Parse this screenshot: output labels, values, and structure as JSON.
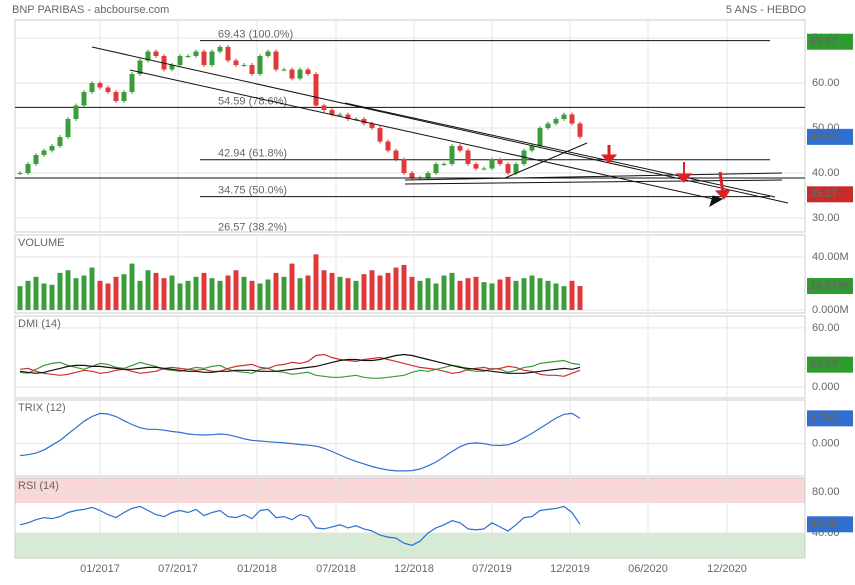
{
  "chart_data": [
    {
      "type": "candlestick",
      "title": "BNP PARIBAS - abcbourse.com",
      "subtitle": "5 ANS - HEBDO",
      "values": [
        40,
        42,
        44,
        45,
        46,
        48,
        52,
        55,
        58,
        60,
        59,
        58,
        56,
        58,
        62,
        65,
        67,
        66,
        63,
        64,
        66,
        66,
        67,
        64,
        67,
        68,
        65,
        64,
        64,
        62,
        66,
        67,
        63,
        63,
        61,
        63,
        62,
        55,
        54,
        53,
        53,
        52,
        52,
        51,
        50,
        47,
        45,
        43,
        40,
        39,
        39,
        40,
        42,
        42,
        46,
        45,
        42,
        41,
        41,
        43,
        42,
        40,
        42,
        45,
        46,
        50,
        51,
        52,
        53,
        51,
        48.04
      ],
      "up_color": "#3a9c3a",
      "down_color": "#e0393b",
      "ylim": [
        26.9,
        74
      ],
      "yticks": [
        {
          "value": 70,
          "label": "70.00"
        },
        {
          "value": 60,
          "label": "60.00"
        },
        {
          "value": 50,
          "label": "50.00"
        },
        {
          "value": 40,
          "label": "40.00"
        },
        {
          "value": 30,
          "label": "30.00"
        }
      ],
      "levels": [
        {
          "value": 69.43,
          "label": "69.43  (100.0%)"
        },
        {
          "value": 54.59,
          "label": "54.59  (78.6%)"
        },
        {
          "value": 42.94,
          "label": "42.94  (61.8%)"
        },
        {
          "value": 34.75,
          "label": "34.75  (50.0%)"
        },
        {
          "value": 26.57,
          "label": "26.57  (38.2%)"
        }
      ],
      "badges": [
        {
          "value": 69.17,
          "color": "#2e9b2e"
        },
        {
          "value": 48.04,
          "color": "#2f6fd0"
        },
        {
          "value": 35.27,
          "color": "#c92b2b"
        }
      ]
    },
    {
      "type": "bar",
      "title": "VOLUME",
      "title_color": "#2e9b2e",
      "values": [
        18,
        22,
        25,
        20,
        19,
        28,
        30,
        24,
        26,
        32,
        22,
        20,
        25,
        27,
        35,
        22,
        30,
        28,
        24,
        26,
        20,
        22,
        25,
        28,
        24,
        22,
        26,
        30,
        25,
        22,
        20,
        23,
        28,
        25,
        35,
        24,
        26,
        42,
        30,
        28,
        25,
        24,
        22,
        27,
        30,
        26,
        28,
        32,
        34,
        25,
        22,
        24,
        20,
        26,
        28,
        22,
        24,
        25,
        21,
        20,
        23,
        25,
        22,
        24,
        26,
        24,
        22,
        20,
        18,
        22,
        18.07
      ],
      "ylim": [
        -2.3,
        56.6
      ],
      "yticks": [
        {
          "value": 40,
          "label": "40.00M"
        },
        {
          "value": 0,
          "label": "0.000M"
        }
      ],
      "badges": [
        {
          "value": 18.07,
          "label": "18 070K",
          "color": "#2e9b2e"
        }
      ]
    },
    {
      "type": "line",
      "title": "DMI (14)",
      "title_color": "#2f6fd0",
      "series": [
        {
          "color": "#3a9c3a",
          "values": [
            15,
            14,
            18,
            22,
            24,
            25,
            22,
            20,
            18,
            21,
            24,
            23,
            20,
            19,
            22,
            25,
            23,
            21,
            18,
            17,
            16,
            18,
            20,
            19,
            21,
            22,
            18,
            16,
            15,
            14,
            18,
            19,
            16,
            15,
            13,
            14,
            15,
            12,
            11,
            10,
            10,
            11,
            12,
            10,
            9,
            9,
            10,
            11,
            12,
            15,
            17,
            16,
            18,
            20,
            22,
            21,
            17,
            16,
            16,
            19,
            18,
            15,
            17,
            20,
            21,
            24,
            25,
            26,
            27,
            24,
            22.77
          ]
        },
        {
          "color": "#d03030",
          "values": [
            18,
            19,
            16,
            14,
            13,
            12,
            13,
            15,
            17,
            16,
            14,
            15,
            17,
            18,
            16,
            14,
            15,
            16,
            19,
            20,
            19,
            18,
            17,
            18,
            16,
            16,
            19,
            21,
            22,
            23,
            20,
            19,
            22,
            23,
            25,
            24,
            26,
            32,
            33,
            30,
            28,
            27,
            26,
            28,
            29,
            30,
            28,
            26,
            24,
            22,
            20,
            19,
            18,
            16,
            14,
            15,
            18,
            19,
            20,
            18,
            19,
            21,
            20,
            17,
            16,
            13,
            12,
            12,
            11,
            14,
            17
          ]
        },
        {
          "color": "#111111",
          "values": [
            16,
            15,
            14,
            15,
            17,
            19,
            21,
            22,
            22,
            21,
            21,
            20,
            19,
            18,
            18,
            19,
            20,
            20,
            19,
            18,
            17,
            16,
            16,
            15,
            15,
            16,
            16,
            17,
            17,
            17,
            16,
            16,
            16,
            17,
            18,
            19,
            20,
            21,
            23,
            25,
            27,
            28,
            28,
            27,
            27,
            28,
            30,
            32,
            33,
            32,
            30,
            28,
            26,
            24,
            22,
            20,
            19,
            18,
            17,
            16,
            15,
            14,
            14,
            14,
            15,
            16,
            17,
            18,
            19,
            18,
            20
          ]
        }
      ],
      "ylim": [
        -11,
        72
      ],
      "yticks": [
        {
          "value": 60,
          "label": "60.00"
        },
        {
          "value": 0,
          "label": "0.000"
        }
      ],
      "badges": [
        {
          "value": 22.77,
          "color": "#2e9b2e"
        }
      ]
    },
    {
      "type": "line",
      "title": "TRIX (12)",
      "title_color": "#2f6fd0",
      "series": [
        {
          "color": "#2f6fd0",
          "values": [
            -0.38,
            -0.35,
            -0.3,
            -0.2,
            -0.05,
            0.1,
            0.3,
            0.5,
            0.7,
            0.85,
            0.95,
            0.93,
            0.85,
            0.72,
            0.6,
            0.5,
            0.45,
            0.45,
            0.42,
            0.38,
            0.35,
            0.3,
            0.28,
            0.27,
            0.28,
            0.3,
            0.28,
            0.22,
            0.15,
            0.1,
            0.08,
            0.06,
            0.04,
            0.02,
            0.0,
            -0.03,
            -0.05,
            -0.08,
            -0.15,
            -0.25,
            -0.36,
            -0.47,
            -0.56,
            -0.64,
            -0.72,
            -0.78,
            -0.83,
            -0.86,
            -0.86,
            -0.85,
            -0.8,
            -0.7,
            -0.58,
            -0.42,
            -0.25,
            -0.1,
            0.0,
            0.02,
            0.0,
            -0.05,
            -0.06,
            -0.04,
            0.05,
            0.18,
            0.32,
            0.48,
            0.64,
            0.8,
            0.92,
            0.95,
            0.793
          ]
        }
      ],
      "ylim": [
        -1.02,
        1.37
      ],
      "yticks": [
        {
          "value": 0,
          "label": "0.000"
        }
      ],
      "badges": [
        {
          "value": 0.793,
          "color": "#2f6fd0"
        }
      ]
    },
    {
      "type": "line",
      "title": "RSI (14)",
      "title_color": "#2f6fd0",
      "series": [
        {
          "color": "#2f6fd0",
          "values": [
            48,
            50,
            53,
            55,
            54,
            56,
            60,
            62,
            63,
            65,
            62,
            58,
            55,
            60,
            64,
            66,
            62,
            58,
            56,
            60,
            62,
            60,
            63,
            57,
            60,
            62,
            56,
            55,
            58,
            54,
            62,
            63,
            55,
            56,
            53,
            58,
            56,
            45,
            44,
            46,
            48,
            45,
            47,
            44,
            42,
            38,
            36,
            35,
            30,
            28,
            32,
            40,
            45,
            48,
            52,
            50,
            44,
            43,
            44,
            50,
            46,
            42,
            48,
            55,
            56,
            62,
            63,
            64,
            66,
            60,
            48.48
          ]
        }
      ],
      "ylim": [
        15.6,
        93.7
      ],
      "yticks": [
        {
          "value": 80,
          "label": "80.00"
        },
        {
          "value": 40,
          "label": "40.00"
        }
      ],
      "badges": [
        {
          "value": 48.48,
          "color": "#2f6fd0"
        }
      ],
      "xlim": [
        -0.625,
        98.125
      ],
      "xticks": [
        {
          "value": 10,
          "label": "01/2017"
        },
        {
          "value": 19.75,
          "label": "07/2017"
        },
        {
          "value": 29.625,
          "label": "01/2018"
        },
        {
          "value": 39.5,
          "label": "07/2018"
        },
        {
          "value": 49.25,
          "label": "12/2018"
        },
        {
          "value": 59,
          "label": "07/2019"
        },
        {
          "value": 68.75,
          "label": "12/2019"
        },
        {
          "value": 78.5,
          "label": "06/2020"
        },
        {
          "value": 88.375,
          "label": "12/2020"
        }
      ]
    }
  ]
}
